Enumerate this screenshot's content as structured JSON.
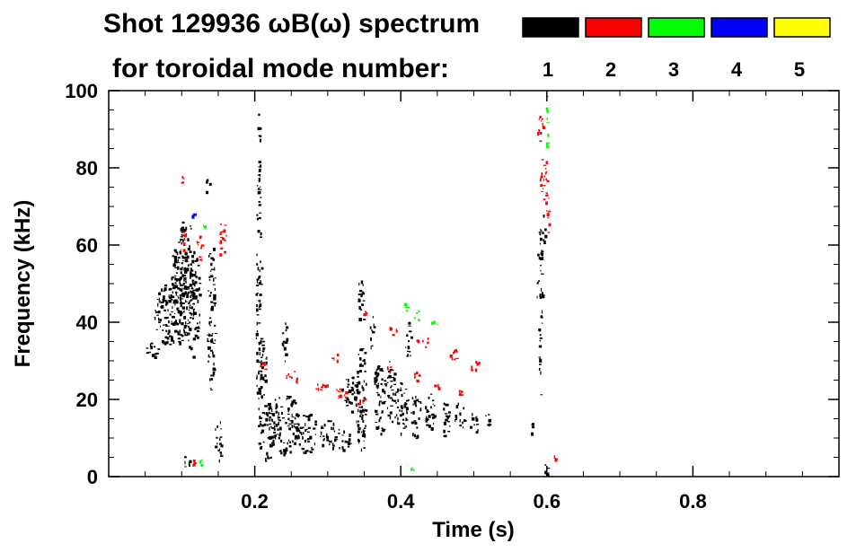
{
  "chart_data": {
    "type": "scatter",
    "title_line1": "Shot 129936 ωB(ω) spectrum",
    "title_line2": "for toroidal mode number:",
    "xlabel": "Time (s)",
    "ylabel": "Frequency (kHz)",
    "xlim": [
      0.0,
      1.0
    ],
    "ylim": [
      0,
      100
    ],
    "xticks": [
      {
        "value": 0.2,
        "label": "0.2"
      },
      {
        "value": 0.4,
        "label": "0.4"
      },
      {
        "value": 0.6,
        "label": "0.6"
      },
      {
        "value": 0.8,
        "label": "0.8"
      }
    ],
    "yticks": [
      {
        "value": 0,
        "label": "0"
      },
      {
        "value": 20,
        "label": "20"
      },
      {
        "value": 40,
        "label": "40"
      },
      {
        "value": 60,
        "label": "60"
      },
      {
        "value": 80,
        "label": "80"
      },
      {
        "value": 100,
        "label": "100"
      }
    ],
    "legend": {
      "placement": "top-right",
      "entries": [
        {
          "mode": "1",
          "color": "#000000"
        },
        {
          "mode": "2",
          "color": "#ff0000"
        },
        {
          "mode": "3",
          "color": "#00ff00"
        },
        {
          "mode": "4",
          "color": "#0000ff"
        },
        {
          "mode": "5",
          "color": "#ffff00"
        }
      ]
    },
    "series": [
      {
        "name": "n=1",
        "color": "#000000",
        "blobs": [
          [
            0.06,
            33,
            0.01,
            2
          ],
          [
            0.08,
            42,
            0.018,
            8
          ],
          [
            0.1,
            46,
            0.018,
            12
          ],
          [
            0.095,
            52,
            0.01,
            10
          ],
          [
            0.115,
            45,
            0.01,
            14
          ],
          [
            0.135,
            76,
            0.003,
            3
          ],
          [
            0.14,
            42,
            0.006,
            20
          ],
          [
            0.105,
            62,
            0.008,
            6
          ],
          [
            0.105,
            4,
            0.006,
            2
          ],
          [
            0.15,
            10,
            0.005,
            6
          ],
          [
            0.205,
            45,
            0.004,
            35
          ],
          [
            0.205,
            85,
            0.002,
            10
          ],
          [
            0.215,
            12,
            0.012,
            8
          ],
          [
            0.24,
            14,
            0.02,
            8
          ],
          [
            0.27,
            12,
            0.014,
            6
          ],
          [
            0.3,
            11,
            0.012,
            4
          ],
          [
            0.32,
            10,
            0.01,
            3
          ],
          [
            0.21,
            28,
            0.006,
            8
          ],
          [
            0.24,
            35,
            0.004,
            6
          ],
          [
            0.33,
            22,
            0.012,
            5
          ],
          [
            0.345,
            22,
            0.007,
            16
          ],
          [
            0.37,
            20,
            0.009,
            10
          ],
          [
            0.385,
            22,
            0.008,
            8
          ],
          [
            0.4,
            18,
            0.01,
            7
          ],
          [
            0.42,
            16,
            0.008,
            6
          ],
          [
            0.44,
            17,
            0.008,
            5
          ],
          [
            0.46,
            15,
            0.007,
            5
          ],
          [
            0.48,
            16,
            0.007,
            4
          ],
          [
            0.5,
            14,
            0.006,
            3
          ],
          [
            0.52,
            15,
            0.006,
            2
          ],
          [
            0.345,
            45,
            0.004,
            8
          ],
          [
            0.36,
            38,
            0.003,
            5
          ],
          [
            0.41,
            35,
            0.004,
            6
          ],
          [
            0.35,
            10,
            0.002,
            4
          ],
          [
            0.59,
            50,
            0.004,
            16
          ],
          [
            0.595,
            63,
            0.003,
            5
          ],
          [
            0.6,
            2,
            0.004,
            2
          ],
          [
            0.59,
            28,
            0.002,
            8
          ],
          [
            0.58,
            12,
            0.002,
            4
          ]
        ]
      },
      {
        "name": "n=2",
        "color": "#ff0000",
        "blobs": [
          [
            0.1,
            61,
            0.004,
            3
          ],
          [
            0.125,
            60,
            0.005,
            4
          ],
          [
            0.155,
            62,
            0.006,
            5
          ],
          [
            0.1,
            77,
            0.002,
            1
          ],
          [
            0.115,
            4,
            0.002,
            1
          ],
          [
            0.21,
            29,
            0.004,
            2
          ],
          [
            0.25,
            26,
            0.01,
            1.5
          ],
          [
            0.29,
            24,
            0.01,
            1.5
          ],
          [
            0.32,
            22,
            0.01,
            1.5
          ],
          [
            0.345,
            20,
            0.008,
            1.5
          ],
          [
            0.31,
            31,
            0.005,
            1
          ],
          [
            0.35,
            42,
            0.003,
            2
          ],
          [
            0.39,
            38,
            0.008,
            1.5
          ],
          [
            0.43,
            35,
            0.01,
            1.5
          ],
          [
            0.47,
            32,
            0.01,
            1.5
          ],
          [
            0.5,
            29,
            0.008,
            1.5
          ],
          [
            0.38,
            28,
            0.006,
            1.2
          ],
          [
            0.42,
            26,
            0.008,
            1.2
          ],
          [
            0.45,
            24,
            0.006,
            1.2
          ],
          [
            0.48,
            22,
            0.004,
            1
          ],
          [
            0.59,
            90,
            0.004,
            5
          ],
          [
            0.595,
            78,
            0.005,
            7
          ],
          [
            0.6,
            68,
            0.003,
            5
          ],
          [
            0.61,
            5,
            0.002,
            1
          ]
        ]
      },
      {
        "name": "n=3",
        "color": "#00ff00",
        "blobs": [
          [
            0.13,
            65,
            0.002,
            1
          ],
          [
            0.405,
            44,
            0.004,
            1
          ],
          [
            0.42,
            42,
            0.006,
            1.5
          ],
          [
            0.445,
            40,
            0.006,
            1.2
          ],
          [
            0.415,
            2,
            0.002,
            0.5
          ],
          [
            0.6,
            90,
            0.003,
            5
          ],
          [
            0.6,
            97,
            0.002,
            2
          ],
          [
            0.125,
            4,
            0.002,
            0.8
          ]
        ]
      },
      {
        "name": "n=4",
        "color": "#0000ff",
        "blobs": [
          [
            0.115,
            68,
            0.001,
            0.6
          ]
        ]
      }
    ]
  }
}
